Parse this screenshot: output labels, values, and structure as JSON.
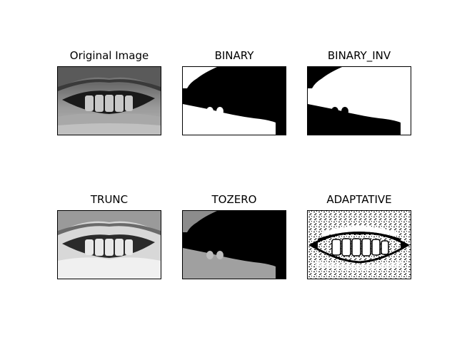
{
  "figure": {
    "subplots": [
      {
        "title": "Original Image"
      },
      {
        "title": "BINARY"
      },
      {
        "title": "BINARY_INV"
      },
      {
        "title": "TRUNC"
      },
      {
        "title": "TOZERO"
      },
      {
        "title": "ADAPTATIVE"
      }
    ]
  }
}
